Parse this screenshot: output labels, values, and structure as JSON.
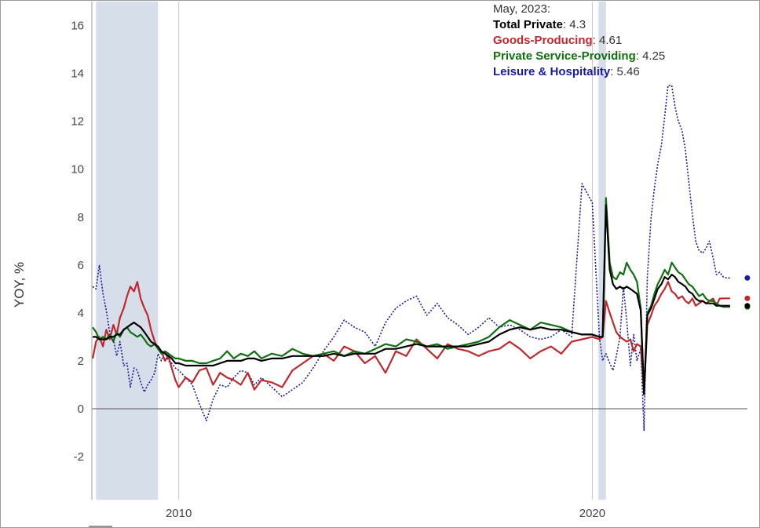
{
  "chart_data": {
    "type": "line",
    "ylabel": "YOY, %",
    "ylim": [
      -3.8,
      17
    ],
    "xlim": [
      2007.9,
      2023.75
    ],
    "y_ticks": [
      -2,
      0,
      2,
      4,
      6,
      8,
      10,
      12,
      14,
      16
    ],
    "x_ticks": [
      {
        "value": 2010,
        "label": "2010"
      },
      {
        "value": 2020,
        "label": "2020"
      }
    ],
    "recessions": [
      [
        2008.0,
        2009.5
      ],
      [
        2020.15,
        2020.33
      ]
    ],
    "vlines": [
      2010.0,
      2020.0
    ],
    "grid": false,
    "tooltip": {
      "date": "May, 2023:",
      "items": [
        {
          "name": "Total Private",
          "value": "4.3",
          "color": "#000000"
        },
        {
          "name": "Goods-Producing",
          "value": "4.61",
          "color": "#c0282d"
        },
        {
          "name": "Private Service-Providing",
          "value": "4.25",
          "color": "#107010"
        },
        {
          "name": "Leisure & Hospitality",
          "value": "5.46",
          "color": "#1a1a9c"
        }
      ]
    },
    "series": [
      {
        "name": "Leisure & Hospitality",
        "color": "#1a1a9c",
        "dash": "2,2",
        "x": [
          2007.92,
          2008.0,
          2008.08,
          2008.17,
          2008.25,
          2008.33,
          2008.42,
          2008.5,
          2008.58,
          2008.67,
          2008.75,
          2008.83,
          2008.92,
          2009.0,
          2009.08,
          2009.17,
          2009.25,
          2009.33,
          2009.42,
          2009.5,
          2009.58,
          2009.67,
          2009.75,
          2009.83,
          2009.92,
          2010.0,
          2010.17,
          2010.33,
          2010.5,
          2010.67,
          2010.83,
          2011.0,
          2011.17,
          2011.33,
          2011.5,
          2011.67,
          2011.83,
          2012.0,
          2012.25,
          2012.5,
          2012.75,
          2013.0,
          2013.25,
          2013.5,
          2013.75,
          2014.0,
          2014.25,
          2014.5,
          2014.75,
          2015.0,
          2015.25,
          2015.5,
          2015.75,
          2016.0,
          2016.25,
          2016.5,
          2016.75,
          2017.0,
          2017.25,
          2017.5,
          2017.75,
          2018.0,
          2018.25,
          2018.5,
          2018.75,
          2019.0,
          2019.25,
          2019.5,
          2019.75,
          2020.0,
          2020.17,
          2020.25,
          2020.33,
          2020.42,
          2020.5,
          2020.58,
          2020.67,
          2020.75,
          2020.83,
          2020.92,
          2021.0,
          2021.08,
          2021.17,
          2021.25,
          2021.33,
          2021.42,
          2021.5,
          2021.58,
          2021.67,
          2021.75,
          2021.83,
          2021.92,
          2022.0,
          2022.08,
          2022.17,
          2022.25,
          2022.33,
          2022.42,
          2022.5,
          2022.58,
          2022.67,
          2022.75,
          2022.83,
          2022.92,
          2023.0,
          2023.08,
          2023.17,
          2023.25,
          2023.33
        ],
        "y": [
          5.1,
          5.0,
          6.0,
          4.8,
          4.1,
          3.2,
          2.9,
          2.2,
          2.8,
          1.8,
          1.9,
          0.9,
          1.7,
          1.6,
          1.1,
          0.7,
          1.0,
          1.2,
          1.5,
          2.3,
          2.0,
          2.4,
          2.0,
          1.9,
          1.7,
          1.6,
          1.3,
          1.0,
          0.2,
          -0.5,
          0.4,
          1.0,
          0.9,
          1.3,
          1.6,
          1.5,
          1.0,
          1.3,
          0.9,
          0.5,
          0.8,
          1.1,
          1.7,
          2.4,
          3.0,
          3.7,
          3.4,
          3.2,
          2.6,
          3.6,
          4.2,
          4.5,
          4.7,
          3.9,
          4.4,
          3.8,
          3.5,
          3.1,
          3.4,
          3.8,
          3.4,
          3.5,
          3.3,
          3.0,
          2.9,
          3.0,
          3.3,
          3.0,
          9.4,
          8.6,
          3.0,
          2.0,
          2.3,
          1.9,
          1.6,
          2.2,
          3.0,
          5.1,
          3.7,
          1.8,
          3.1,
          2.0,
          2.5,
          -0.9,
          5.5,
          8.0,
          9.2,
          10.2,
          11.0,
          12.2,
          13.5,
          13.5,
          12.6,
          12.0,
          11.6,
          10.8,
          9.5,
          8.1,
          7.0,
          6.6,
          6.5,
          6.7,
          7.0,
          6.3,
          5.6,
          5.7,
          5.5,
          5.46,
          5.46
        ]
      },
      {
        "name": "Goods-Producing",
        "color": "#c0282d",
        "dash": "",
        "x": [
          2007.92,
          2008.0,
          2008.08,
          2008.17,
          2008.25,
          2008.33,
          2008.42,
          2008.5,
          2008.58,
          2008.67,
          2008.75,
          2008.83,
          2008.92,
          2009.0,
          2009.08,
          2009.17,
          2009.25,
          2009.33,
          2009.42,
          2009.5,
          2009.58,
          2009.67,
          2009.75,
          2009.83,
          2009.92,
          2010.0,
          2010.17,
          2010.33,
          2010.5,
          2010.67,
          2010.83,
          2011.0,
          2011.17,
          2011.33,
          2011.5,
          2011.67,
          2011.83,
          2012.0,
          2012.25,
          2012.5,
          2012.75,
          2013.0,
          2013.25,
          2013.5,
          2013.75,
          2014.0,
          2014.25,
          2014.5,
          2014.75,
          2015.0,
          2015.25,
          2015.5,
          2015.75,
          2016.0,
          2016.25,
          2016.5,
          2016.75,
          2017.0,
          2017.25,
          2017.5,
          2017.75,
          2018.0,
          2018.25,
          2018.5,
          2018.75,
          2019.0,
          2019.25,
          2019.5,
          2019.75,
          2020.0,
          2020.17,
          2020.25,
          2020.33,
          2020.42,
          2020.5,
          2020.58,
          2020.67,
          2020.75,
          2020.83,
          2020.92,
          2021.0,
          2021.08,
          2021.17,
          2021.25,
          2021.33,
          2021.42,
          2021.5,
          2021.58,
          2021.67,
          2021.75,
          2021.83,
          2021.92,
          2022.0,
          2022.08,
          2022.17,
          2022.25,
          2022.33,
          2022.42,
          2022.5,
          2022.58,
          2022.67,
          2022.75,
          2022.83,
          2022.92,
          2023.0,
          2023.08,
          2023.17,
          2023.25,
          2023.33
        ],
        "y": [
          2.1,
          2.8,
          3.0,
          2.6,
          3.3,
          2.9,
          3.5,
          3.1,
          3.8,
          4.2,
          4.7,
          5.1,
          4.9,
          5.3,
          4.6,
          4.2,
          3.9,
          3.3,
          2.8,
          2.5,
          2.4,
          2.0,
          2.2,
          1.7,
          1.2,
          0.9,
          1.3,
          1.1,
          1.6,
          1.7,
          1.0,
          1.5,
          1.3,
          1.2,
          1.0,
          1.5,
          0.8,
          1.2,
          1.1,
          0.9,
          1.6,
          1.9,
          2.2,
          2.3,
          2.0,
          2.6,
          2.4,
          1.9,
          2.2,
          1.5,
          2.4,
          2.2,
          2.9,
          2.5,
          2.1,
          2.7,
          2.5,
          2.4,
          2.2,
          2.4,
          2.5,
          2.8,
          2.5,
          2.1,
          2.4,
          2.6,
          2.3,
          2.8,
          2.9,
          3.0,
          2.9,
          3.0,
          4.5,
          4.0,
          3.6,
          3.2,
          3.0,
          2.9,
          2.8,
          2.9,
          2.4,
          2.7,
          2.6,
          0.7,
          3.5,
          3.9,
          4.3,
          4.5,
          4.8,
          5.0,
          5.3,
          4.9,
          4.8,
          4.6,
          4.7,
          4.5,
          4.4,
          4.6,
          4.3,
          4.4,
          4.5,
          4.4,
          4.5,
          4.6,
          4.3,
          4.6,
          4.61,
          4.61,
          4.61
        ]
      },
      {
        "name": "Private Service-Providing",
        "color": "#107010",
        "dash": "",
        "x": [
          2007.92,
          2008.0,
          2008.08,
          2008.17,
          2008.25,
          2008.33,
          2008.42,
          2008.5,
          2008.58,
          2008.67,
          2008.75,
          2008.83,
          2008.92,
          2009.0,
          2009.08,
          2009.17,
          2009.25,
          2009.33,
          2009.42,
          2009.5,
          2009.58,
          2009.67,
          2009.75,
          2009.83,
          2009.92,
          2010.0,
          2010.17,
          2010.33,
          2010.5,
          2010.67,
          2010.83,
          2011.0,
          2011.17,
          2011.33,
          2011.5,
          2011.67,
          2011.83,
          2012.0,
          2012.25,
          2012.5,
          2012.75,
          2013.0,
          2013.25,
          2013.5,
          2013.75,
          2014.0,
          2014.25,
          2014.5,
          2014.75,
          2015.0,
          2015.25,
          2015.5,
          2015.75,
          2016.0,
          2016.25,
          2016.5,
          2016.75,
          2017.0,
          2017.25,
          2017.5,
          2017.75,
          2018.0,
          2018.25,
          2018.5,
          2018.75,
          2019.0,
          2019.25,
          2019.5,
          2019.75,
          2020.0,
          2020.17,
          2020.25,
          2020.33,
          2020.42,
          2020.5,
          2020.58,
          2020.67,
          2020.75,
          2020.83,
          2020.92,
          2021.0,
          2021.08,
          2021.17,
          2021.25,
          2021.33,
          2021.42,
          2021.5,
          2021.58,
          2021.67,
          2021.75,
          2021.83,
          2021.92,
          2022.0,
          2022.08,
          2022.17,
          2022.25,
          2022.33,
          2022.42,
          2022.5,
          2022.58,
          2022.67,
          2022.75,
          2022.83,
          2022.92,
          2023.0,
          2023.08,
          2023.17,
          2023.25,
          2023.33
        ],
        "y": [
          3.4,
          3.2,
          2.9,
          3.0,
          2.9,
          3.1,
          2.8,
          3.2,
          3.0,
          3.3,
          3.4,
          3.2,
          3.1,
          3.0,
          3.1,
          2.9,
          2.7,
          2.6,
          2.7,
          2.5,
          2.3,
          2.4,
          2.3,
          2.2,
          2.1,
          2.1,
          2.0,
          2.0,
          1.9,
          1.9,
          2.0,
          2.1,
          2.4,
          2.1,
          2.3,
          2.2,
          2.4,
          2.1,
          2.3,
          2.2,
          2.5,
          2.3,
          2.2,
          2.3,
          2.4,
          2.2,
          2.4,
          2.3,
          2.5,
          2.7,
          2.6,
          2.9,
          2.8,
          2.6,
          2.7,
          2.5,
          2.6,
          2.7,
          2.8,
          3.0,
          3.4,
          3.7,
          3.5,
          3.3,
          3.6,
          3.5,
          3.4,
          3.2,
          3.1,
          3.1,
          3.0,
          3.0,
          8.8,
          6.1,
          5.5,
          5.4,
          5.7,
          5.6,
          6.1,
          5.8,
          5.6,
          5.3,
          4.2,
          0.6,
          4.0,
          4.3,
          4.8,
          5.2,
          5.5,
          5.8,
          5.6,
          6.1,
          5.9,
          5.7,
          5.6,
          5.4,
          5.2,
          5.1,
          4.9,
          4.7,
          4.8,
          4.6,
          4.5,
          4.5,
          4.4,
          4.3,
          4.25,
          4.25,
          4.25
        ]
      },
      {
        "name": "Total Private",
        "color": "#000000",
        "dash": "",
        "x": [
          2007.92,
          2008.0,
          2008.08,
          2008.17,
          2008.25,
          2008.33,
          2008.42,
          2008.5,
          2008.58,
          2008.67,
          2008.75,
          2008.83,
          2008.92,
          2009.0,
          2009.08,
          2009.17,
          2009.25,
          2009.33,
          2009.42,
          2009.5,
          2009.58,
          2009.67,
          2009.75,
          2009.83,
          2009.92,
          2010.0,
          2010.17,
          2010.33,
          2010.5,
          2010.67,
          2010.83,
          2011.0,
          2011.17,
          2011.33,
          2011.5,
          2011.67,
          2011.83,
          2012.0,
          2012.25,
          2012.5,
          2012.75,
          2013.0,
          2013.25,
          2013.5,
          2013.75,
          2014.0,
          2014.25,
          2014.5,
          2014.75,
          2015.0,
          2015.25,
          2015.5,
          2015.75,
          2016.0,
          2016.25,
          2016.5,
          2016.75,
          2017.0,
          2017.25,
          2017.5,
          2017.75,
          2018.0,
          2018.25,
          2018.5,
          2018.75,
          2019.0,
          2019.25,
          2019.5,
          2019.75,
          2020.0,
          2020.17,
          2020.25,
          2020.33,
          2020.42,
          2020.5,
          2020.58,
          2020.67,
          2020.75,
          2020.83,
          2020.92,
          2021.0,
          2021.08,
          2021.17,
          2021.25,
          2021.33,
          2021.42,
          2021.5,
          2021.58,
          2021.67,
          2021.75,
          2021.83,
          2021.92,
          2022.0,
          2022.08,
          2022.17,
          2022.25,
          2022.33,
          2022.42,
          2022.5,
          2022.58,
          2022.67,
          2022.75,
          2022.83,
          2022.92,
          2023.0,
          2023.08,
          2023.17,
          2023.25,
          2023.33
        ],
        "y": [
          3.0,
          3.0,
          2.9,
          2.9,
          2.9,
          3.0,
          3.0,
          3.1,
          3.1,
          3.3,
          3.4,
          3.5,
          3.6,
          3.5,
          3.4,
          3.2,
          3.0,
          2.8,
          2.7,
          2.6,
          2.4,
          2.3,
          2.2,
          2.1,
          1.9,
          1.9,
          1.8,
          1.8,
          1.8,
          1.8,
          1.8,
          1.9,
          2.0,
          2.0,
          2.0,
          2.1,
          2.1,
          2.0,
          2.1,
          2.1,
          2.2,
          2.2,
          2.2,
          2.2,
          2.3,
          2.2,
          2.3,
          2.3,
          2.3,
          2.5,
          2.5,
          2.6,
          2.7,
          2.6,
          2.6,
          2.6,
          2.6,
          2.6,
          2.7,
          2.8,
          3.1,
          3.3,
          3.4,
          3.3,
          3.4,
          3.3,
          3.3,
          3.2,
          3.1,
          3.1,
          3.0,
          3.0,
          8.5,
          5.8,
          5.2,
          5.0,
          5.1,
          5.0,
          5.1,
          5.0,
          4.9,
          4.8,
          4.1,
          0.6,
          3.9,
          4.2,
          4.6,
          5.0,
          5.2,
          5.5,
          5.4,
          5.6,
          5.5,
          5.3,
          5.2,
          5.1,
          4.9,
          4.8,
          4.6,
          4.5,
          4.5,
          4.4,
          4.4,
          4.4,
          4.3,
          4.3,
          4.3,
          4.3,
          4.3
        ]
      }
    ]
  }
}
